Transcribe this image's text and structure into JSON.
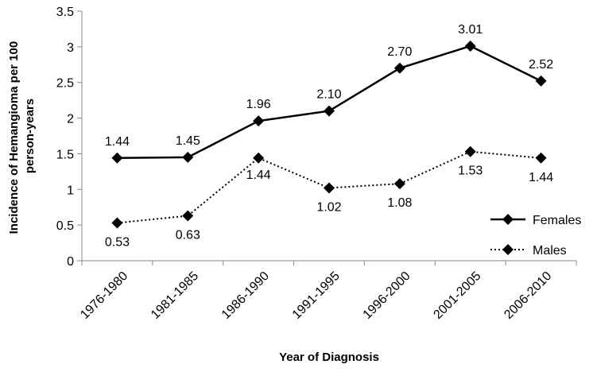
{
  "chart_data": {
    "type": "line",
    "title": "",
    "xlabel": "Year of Diagnosis",
    "ylabel": "Incidence of Hemangioma per 100 person-years",
    "ylabel_lines": [
      "Incidence of Hemangioma per 100",
      "person-years"
    ],
    "categories": [
      "1976-1980",
      "1981-1985",
      "1986-1990",
      "1991-1995",
      "1996-2000",
      "2001-2005",
      "2006-2010"
    ],
    "ylim": [
      0,
      3.5
    ],
    "yticks": [
      "0",
      "0.5",
      "1",
      "1.5",
      "2",
      "2.5",
      "3",
      "3.5"
    ],
    "grid": false,
    "legend_position": "bottom-right",
    "series": [
      {
        "name": "Females",
        "values": [
          1.44,
          1.45,
          1.96,
          2.1,
          2.7,
          3.01,
          2.52
        ],
        "labels": [
          "1.44",
          "1.45",
          "1.96",
          "2.10",
          "2.70",
          "3.01",
          "2.52"
        ],
        "line_style": "solid",
        "marker": "diamond",
        "color": "#000000"
      },
      {
        "name": "Males",
        "values": [
          0.53,
          0.63,
          1.44,
          1.02,
          1.08,
          1.53,
          1.44
        ],
        "labels": [
          "0.53",
          "0.63",
          "1.44",
          "1.02",
          "1.08",
          "1.53",
          "1.44"
        ],
        "line_style": "dotted",
        "marker": "diamond",
        "color": "#000000"
      }
    ]
  }
}
